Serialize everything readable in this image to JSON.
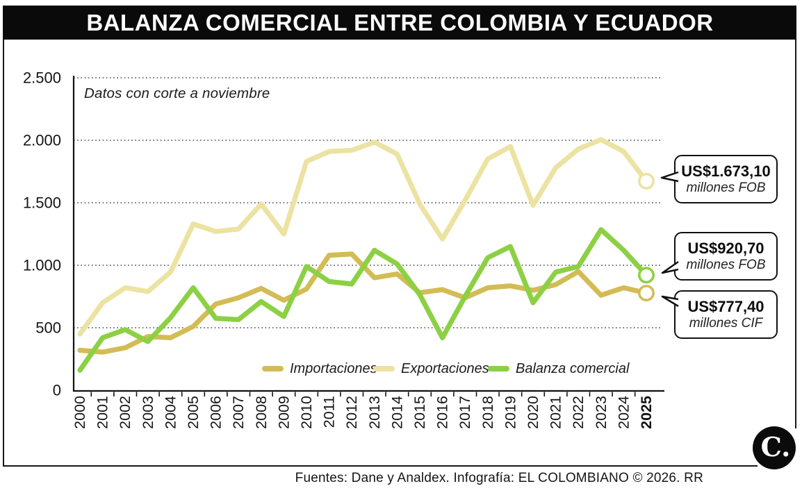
{
  "title": "BALANZA COMERCIAL ENTRE COLOMBIA Y ECUADOR",
  "note": "Datos con corte a noviembre",
  "footer": "Fuentes: Dane y Analdex. Infografía: EL COLOMBIANO © 2026. RR",
  "logo_text": "C.",
  "colors": {
    "importaciones": "#d3bc55",
    "exportaciones": "#ece3a2",
    "balanza": "#8cd044",
    "title_bar": "#0a0a0a",
    "grid": "#444444",
    "axis": "#111111"
  },
  "annotations": [
    {
      "value": "US$1.673,10",
      "unit": "millones FOB",
      "series": "Exportaciones"
    },
    {
      "value": "US$920,70",
      "unit": "millones FOB",
      "series": "Balanza comercial"
    },
    {
      "value": "US$777,40",
      "unit": "millones CIF",
      "series": "Importaciones"
    }
  ],
  "chart_data": {
    "type": "line",
    "title": "Balanza comercial entre Colombia y Ecuador",
    "note": "Datos con corte a noviembre",
    "x": [
      2000,
      2001,
      2002,
      2003,
      2004,
      2005,
      2006,
      2007,
      2008,
      2009,
      2010,
      2011,
      2012,
      2013,
      2014,
      2015,
      2016,
      2017,
      2018,
      2019,
      2020,
      2021,
      2022,
      2023,
      2024,
      2025
    ],
    "x_bold_label": "2025",
    "ylim": [
      0,
      2500
    ],
    "grid": "dotted-horizontal",
    "legend_position": "bottom-inside",
    "y_ticks": [
      {
        "v": 0,
        "label": "0"
      },
      {
        "v": 500,
        "label": "500"
      },
      {
        "v": 1000,
        "label": "1.000"
      },
      {
        "v": 1500,
        "label": "1.500"
      },
      {
        "v": 2000,
        "label": "2.000"
      },
      {
        "v": 2500,
        "label": "2.500"
      }
    ],
    "series": [
      {
        "name": "Importaciones",
        "color": "#d3bc55",
        "end_value_label": "US$777,40 millones CIF",
        "values": [
          320,
          305,
          340,
          430,
          420,
          510,
          690,
          740,
          815,
          720,
          810,
          1080,
          1090,
          900,
          930,
          780,
          805,
          740,
          820,
          835,
          800,
          845,
          950,
          760,
          820,
          777.4
        ]
      },
      {
        "name": "Exportaciones",
        "color": "#ece3a2",
        "end_value_label": "US$1.673,10 millones FOB",
        "values": [
          450,
          700,
          820,
          790,
          945,
          1330,
          1270,
          1290,
          1490,
          1250,
          1830,
          1910,
          1920,
          1985,
          1890,
          1490,
          1210,
          1520,
          1850,
          1950,
          1480,
          1780,
          1930,
          2005,
          1910,
          1673.1
        ]
      },
      {
        "name": "Balanza comercial",
        "color": "#8cd044",
        "end_value_label": "US$920,70 millones FOB",
        "values": [
          160,
          420,
          485,
          390,
          580,
          820,
          575,
          565,
          710,
          590,
          990,
          870,
          850,
          1120,
          1010,
          765,
          420,
          750,
          1060,
          1150,
          700,
          945,
          990,
          1285,
          1120,
          920.7
        ]
      }
    ]
  }
}
